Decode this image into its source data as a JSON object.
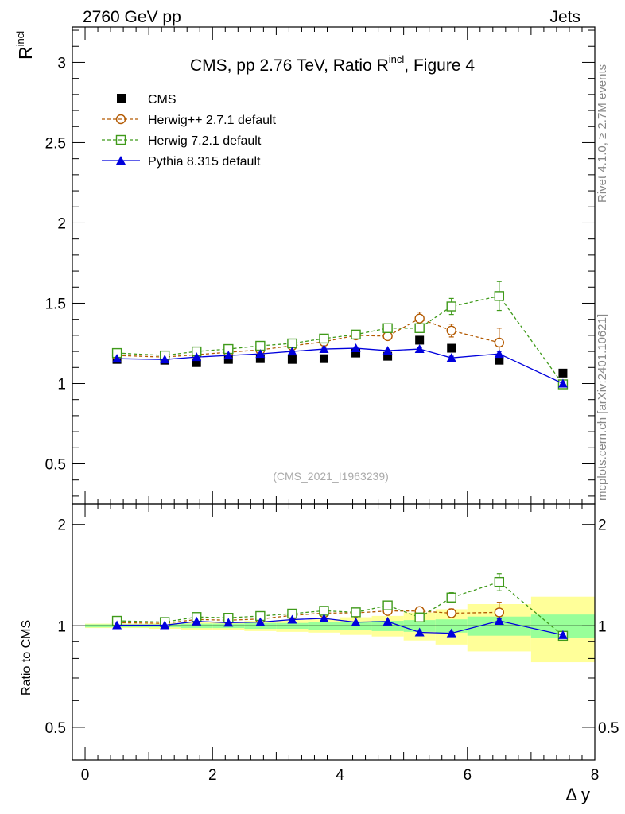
{
  "header": {
    "left": "2760 GeV pp",
    "right": "Jets"
  },
  "side_text": {
    "rivet": "Rivet 4.1.0, ≥ 2.7M events",
    "mcplots": "mcplots.cern.ch [arXiv:2401.10621]"
  },
  "chart_data": {
    "type": "scatter",
    "title_main": "CMS, pp 2.76 TeV, Ratio R",
    "title_sup": "incl",
    "title_tail": ", Figure 4",
    "watermark": "(CMS_2021_I1963239)",
    "ylabel_main": "R",
    "ylabel_sup": "incl",
    "ylabel_ratio": "Ratio to CMS",
    "xlabel": "Δ y",
    "xlim": [
      -0.2,
      8.0
    ],
    "ylim_main": [
      0.25,
      3.22
    ],
    "ylim_ratio": [
      0.4,
      2.3
    ],
    "xticks": [
      0,
      2,
      4,
      6,
      8
    ],
    "xtick_labels": [
      "0",
      "2",
      "4",
      "6",
      "8"
    ],
    "yticks_main": [
      0.5,
      1,
      1.5,
      2,
      2.5,
      3
    ],
    "ytick_labels_main": [
      "0.5",
      "1",
      "1.5",
      "2",
      "2.5",
      "3"
    ],
    "yticks_ratio": [
      0.5,
      1,
      2
    ],
    "ytick_labels_ratio": [
      "0.5",
      "1",
      "2"
    ],
    "colors": {
      "cms": "#000000",
      "herwigpp": "#b35900",
      "herwig7": "#3f9a1a",
      "pythia": "#0000dd",
      "band_green": "#99ff99",
      "band_yellow": "#ffff99"
    },
    "x_edges": [
      0.0,
      1.0,
      1.5,
      2.0,
      2.5,
      3.0,
      3.5,
      4.0,
      4.5,
      5.0,
      5.5,
      6.0,
      7.0,
      8.0
    ],
    "x": [
      0.5,
      1.25,
      1.75,
      2.25,
      2.75,
      3.25,
      3.75,
      4.25,
      4.75,
      5.25,
      5.75,
      6.5,
      7.5
    ],
    "cms": {
      "name": "CMS",
      "values": [
        1.15,
        1.145,
        1.13,
        1.15,
        1.155,
        1.15,
        1.155,
        1.19,
        1.17,
        1.27,
        1.22,
        1.145,
        1.065
      ],
      "stat_rel": [
        0.01,
        0.01,
        0.015,
        0.015,
        0.02,
        0.02,
        0.025,
        0.03,
        0.035,
        0.04,
        0.045,
        0.065,
        0.08
      ],
      "total_rel": [
        0.015,
        0.02,
        0.025,
        0.03,
        0.035,
        0.04,
        0.045,
        0.06,
        0.07,
        0.095,
        0.12,
        0.16,
        0.22
      ]
    },
    "series": [
      {
        "name": "Herwig++ 2.7.1 default",
        "key": "herwigpp",
        "marker": "circle",
        "dashed": true,
        "values": [
          1.175,
          1.165,
          1.18,
          1.195,
          1.21,
          1.235,
          1.26,
          1.3,
          1.295,
          1.405,
          1.33,
          1.255,
          null
        ],
        "errors": [
          0.005,
          0.005,
          0.005,
          0.005,
          0.005,
          0.008,
          0.01,
          0.012,
          0.015,
          0.04,
          0.04,
          0.09,
          null
        ]
      },
      {
        "name": "Herwig 7.2.1 default",
        "key": "herwig7",
        "marker": "square",
        "dashed": true,
        "values": [
          1.19,
          1.175,
          1.2,
          1.215,
          1.235,
          1.25,
          1.28,
          1.305,
          1.345,
          1.345,
          1.48,
          1.545,
          0.995
        ],
        "errors": [
          0.005,
          0.005,
          0.005,
          0.005,
          0.005,
          0.008,
          0.01,
          0.012,
          0.015,
          0.025,
          0.05,
          0.09,
          0.02
        ]
      },
      {
        "name": "Pythia 8.315 default",
        "key": "pythia",
        "marker": "triangle",
        "dashed": false,
        "values": [
          1.155,
          1.15,
          1.165,
          1.175,
          1.185,
          1.2,
          1.215,
          1.22,
          1.205,
          1.215,
          1.16,
          1.185,
          1.0
        ],
        "errors": [
          0.004,
          0.004,
          0.004,
          0.004,
          0.004,
          0.005,
          0.005,
          0.006,
          0.006,
          0.008,
          0.01,
          0.015,
          0.012
        ]
      }
    ]
  }
}
